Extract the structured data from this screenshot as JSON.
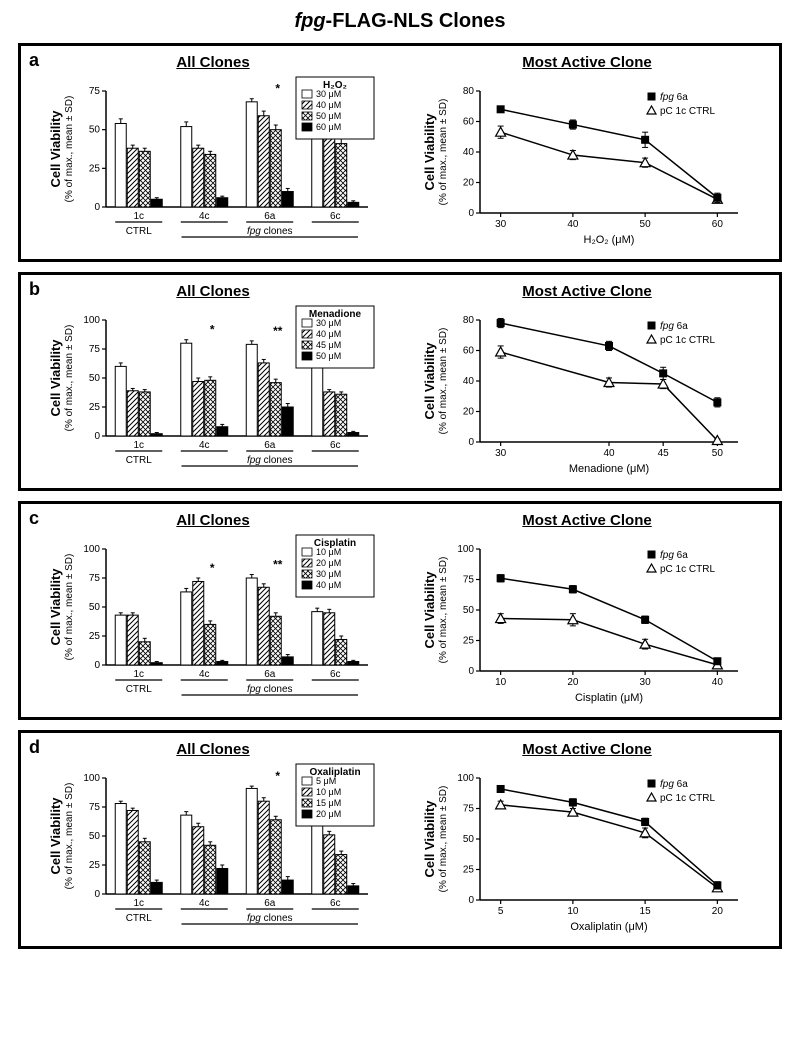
{
  "figure_title_italic": "fpg",
  "figure_title_rest": "-FLAG-NLS Clones",
  "y_axis_main_label": "Cell Viability",
  "y_axis_sub_label": "(% of max., mean ± SD)",
  "bar_groups": [
    "1c",
    "4c",
    "6a",
    "6c"
  ],
  "bar_group_meta_ctrl": "CTRL",
  "bar_group_meta_fpg": "fpg clones",
  "line_legend_fpg": "fpg 6a",
  "line_legend_ctrl": "pC 1c CTRL",
  "left_title": "All Clones",
  "right_title": "Most Active Clone",
  "patterns": {
    "white": "#ffffff",
    "diag": "url(#patDiag)",
    "cross": "url(#patCross)",
    "black": "#000000"
  },
  "panels": [
    {
      "letter": "a",
      "treatment": "H₂O₂",
      "doses": [
        "30 μM",
        "40 μM",
        "50 μM",
        "60 μM"
      ],
      "bar_ymax": 75,
      "bar_ytick": 25,
      "bar_data": {
        "1c": [
          54,
          38,
          36,
          5
        ],
        "4c": [
          52,
          38,
          34,
          6
        ],
        "6a": [
          68,
          59,
          50,
          10
        ],
        "6c": [
          66,
          46,
          41,
          3
        ]
      },
      "bar_err": {
        "1c": [
          3,
          2,
          2,
          1
        ],
        "4c": [
          3,
          2,
          2,
          1
        ],
        "6a": [
          2,
          3,
          3,
          2
        ],
        "6c": [
          3,
          3,
          3,
          1
        ]
      },
      "sig": {
        "6a": "*"
      },
      "line_ymax": 80,
      "line_ymin": 0,
      "line_ytick": 20,
      "line_x": [
        30,
        40,
        50,
        60
      ],
      "line_xlabel": "H₂O₂ (μM)",
      "line_fpg": [
        68,
        58,
        48,
        10
      ],
      "line_ctrl": [
        53,
        38,
        33,
        9
      ],
      "line_fpg_err": [
        2,
        3,
        5,
        3
      ],
      "line_ctrl_err": [
        4,
        3,
        3,
        2
      ]
    },
    {
      "letter": "b",
      "treatment": "Menadione",
      "doses": [
        "30 μM",
        "40 μM",
        "45 μM",
        "50 μM"
      ],
      "bar_ymax": 100,
      "bar_ytick": 25,
      "bar_data": {
        "1c": [
          60,
          39,
          38,
          2
        ],
        "4c": [
          80,
          47,
          48,
          8
        ],
        "6a": [
          79,
          63,
          46,
          25
        ],
        "6c": [
          68,
          38,
          36,
          3
        ]
      },
      "bar_err": {
        "1c": [
          3,
          2,
          2,
          1
        ],
        "4c": [
          3,
          3,
          3,
          2
        ],
        "6a": [
          3,
          3,
          3,
          3
        ],
        "6c": [
          3,
          2,
          2,
          1
        ]
      },
      "sig": {
        "4c": "*",
        "6a": "**"
      },
      "line_ymax": 80,
      "line_ymin": 0,
      "line_ytick": 20,
      "line_x": [
        30,
        40,
        45,
        50
      ],
      "line_xlabel": "Menadione (μM)",
      "line_fpg": [
        78,
        63,
        45,
        26
      ],
      "line_ctrl": [
        59,
        39,
        38,
        1
      ],
      "line_fpg_err": [
        3,
        3,
        4,
        3
      ],
      "line_ctrl_err": [
        4,
        3,
        3,
        1
      ]
    },
    {
      "letter": "c",
      "treatment": "Cisplatin",
      "doses": [
        "10 μM",
        "20 μM",
        "30 μM",
        "40 μM"
      ],
      "bar_ymax": 100,
      "bar_ytick": 25,
      "bar_data": {
        "1c": [
          43,
          43,
          20,
          2
        ],
        "4c": [
          63,
          72,
          35,
          3
        ],
        "6a": [
          75,
          67,
          42,
          7
        ],
        "6c": [
          46,
          45,
          22,
          3
        ]
      },
      "bar_err": {
        "1c": [
          2,
          2,
          3,
          1
        ],
        "4c": [
          3,
          3,
          3,
          1
        ],
        "6a": [
          3,
          3,
          3,
          2
        ],
        "6c": [
          3,
          3,
          3,
          1
        ]
      },
      "sig": {
        "4c": "*",
        "6a": "**"
      },
      "line_ymax": 100,
      "line_ymin": 0,
      "line_ytick": 25,
      "line_x": [
        10,
        20,
        30,
        40
      ],
      "line_xlabel": "Cisplatin (μM)",
      "line_fpg": [
        76,
        67,
        42,
        8
      ],
      "line_ctrl": [
        43,
        42,
        22,
        5
      ],
      "line_fpg_err": [
        3,
        3,
        3,
        2
      ],
      "line_ctrl_err": [
        4,
        5,
        4,
        2
      ]
    },
    {
      "letter": "d",
      "treatment": "Oxaliplatin",
      "doses": [
        "5 μM",
        "10 μM",
        "15 μM",
        "20 μM"
      ],
      "bar_ymax": 100,
      "bar_ytick": 25,
      "bar_data": {
        "1c": [
          78,
          72,
          45,
          10
        ],
        "4c": [
          68,
          58,
          42,
          22
        ],
        "6a": [
          91,
          80,
          64,
          12
        ],
        "6c": [
          66,
          51,
          34,
          7
        ]
      },
      "bar_err": {
        "1c": [
          2,
          2,
          3,
          2
        ],
        "4c": [
          3,
          3,
          3,
          3
        ],
        "6a": [
          2,
          3,
          3,
          3
        ],
        "6c": [
          3,
          3,
          3,
          2
        ]
      },
      "sig": {
        "6a": "*"
      },
      "line_ymax": 100,
      "line_ymin": 0,
      "line_ytick": 25,
      "line_x": [
        5,
        10,
        15,
        20
      ],
      "line_xlabel": "Oxaliplatin (μM)",
      "line_fpg": [
        91,
        80,
        64,
        12
      ],
      "line_ctrl": [
        78,
        72,
        55,
        10
      ],
      "line_fpg_err": [
        2,
        3,
        3,
        3
      ],
      "line_ctrl_err": [
        3,
        3,
        4,
        2
      ]
    }
  ]
}
